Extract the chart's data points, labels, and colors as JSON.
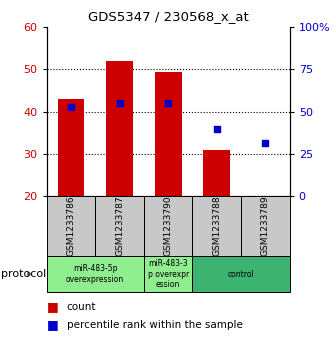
{
  "title": "GDS5347 / 230568_x_at",
  "samples": [
    "GSM1233786",
    "GSM1233787",
    "GSM1233790",
    "GSM1233788",
    "GSM1233789"
  ],
  "bar_values": [
    43,
    52,
    49.5,
    31,
    20
  ],
  "bar_bottom": 20,
  "percentile_values": [
    41,
    42,
    42,
    36,
    32.5
  ],
  "left_ylim": [
    20,
    60
  ],
  "right_ylim": [
    0,
    100
  ],
  "left_yticks": [
    20,
    30,
    40,
    50,
    60
  ],
  "right_yticks": [
    0,
    25,
    50,
    75,
    100
  ],
  "right_yticklabels": [
    "0",
    "25",
    "50",
    "75",
    "100%"
  ],
  "bar_color": "#CC0000",
  "percentile_color": "#0000CC",
  "dotted_line_values": [
    30,
    40,
    50
  ],
  "protocol_groups": [
    {
      "label": "miR-483-5p\noverexpression",
      "start": 0,
      "end": 2,
      "color": "#90EE90"
    },
    {
      "label": "miR-483-3\np overexpr\nession",
      "start": 2,
      "end": 3,
      "color": "#90EE90"
    },
    {
      "label": "control",
      "start": 3,
      "end": 5,
      "color": "#3CB371"
    }
  ],
  "protocol_label": "protocol",
  "legend_count_label": "count",
  "legend_percentile_label": "percentile rank within the sample",
  "sample_box_color": "#C8C8C8",
  "background_color": "#FFFFFF"
}
